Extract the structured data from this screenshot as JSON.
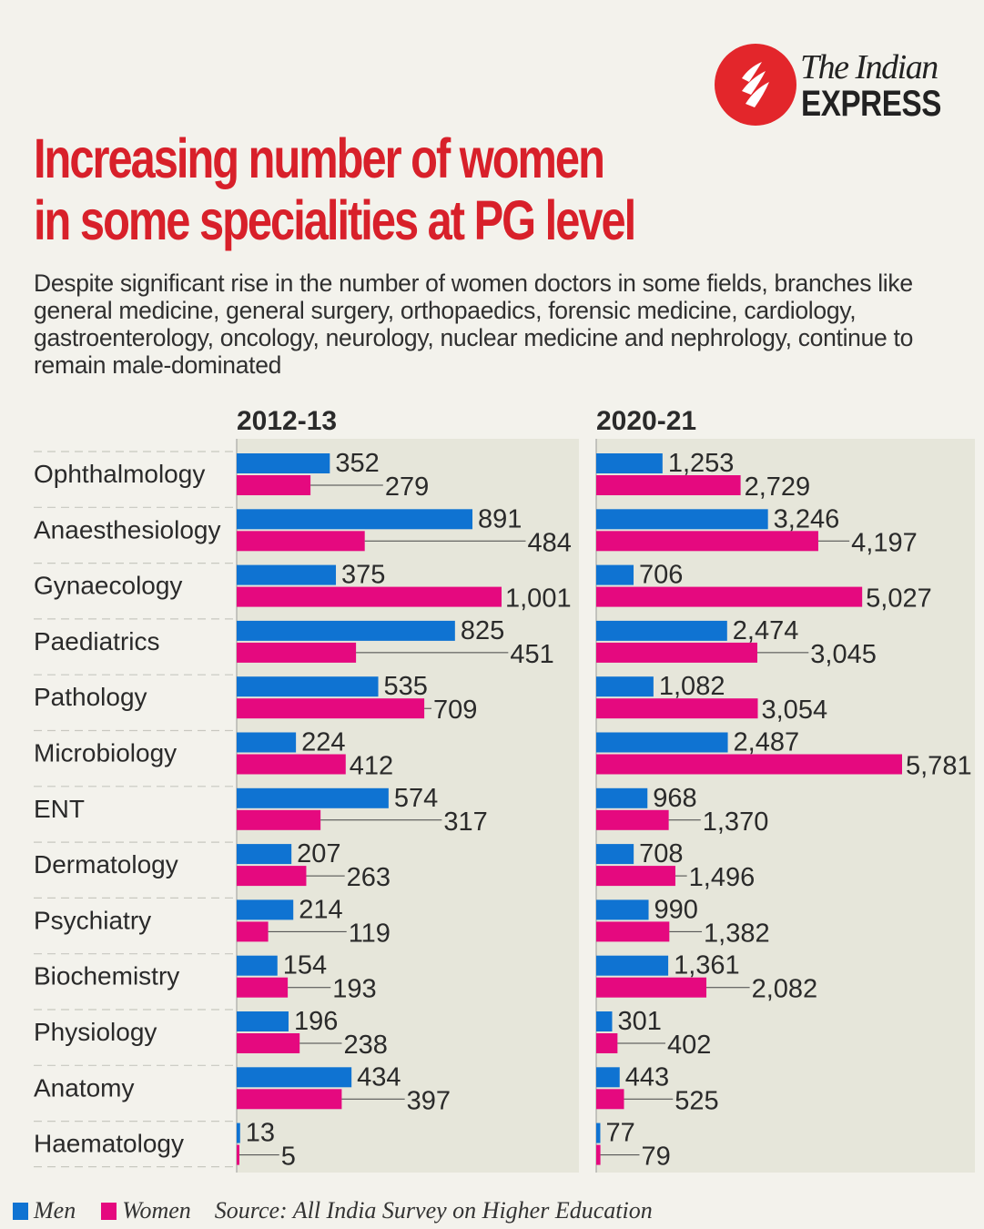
{
  "brand": {
    "line1": "The Indian",
    "line2": "EXPRESS",
    "logo_color": "#e3262b"
  },
  "title": {
    "line1": "Increasing number of women",
    "line2": "in some specialities at PG level"
  },
  "subtitle": "Despite significant rise in the number of women doctors in some fields, branches like general medicine, general surgery, orthopaedics, forensic medicine, cardiology, gastroenterology, oncology, neurology, nuclear medicine and nephrology, continue to remain male-dominated",
  "legend": {
    "men": "Men",
    "women": "Women",
    "source": "Source: All India Survey on Higher Education"
  },
  "colors": {
    "men": "#0f73d2",
    "women": "#e5097f",
    "panel": "#e6e6da",
    "title": "#d8202a"
  },
  "chart_data": {
    "type": "bar",
    "orientation": "horizontal",
    "categories": [
      "Ophthalmology",
      "Anaesthesiology",
      "Gynaecology",
      "Paediatrics",
      "Pathology",
      "Microbiology",
      "ENT",
      "Dermatology",
      "Psychiatry",
      "Biochemistry",
      "Physiology",
      "Anatomy",
      "Haematology"
    ],
    "panels": [
      {
        "title": "2012-13",
        "series": [
          {
            "name": "Men",
            "values": [
              352,
              891,
              375,
              825,
              535,
              224,
              574,
              207,
              214,
              154,
              196,
              434,
              13
            ]
          },
          {
            "name": "Women",
            "values": [
              279,
              484,
              1001,
              451,
              709,
              412,
              317,
              263,
              119,
              193,
              238,
              397,
              5
            ]
          }
        ]
      },
      {
        "title": "2020-21",
        "series": [
          {
            "name": "Men",
            "values": [
              1253,
              3246,
              706,
              2474,
              1082,
              2487,
              968,
              708,
              990,
              1361,
              301,
              443,
              77
            ]
          },
          {
            "name": "Women",
            "values": [
              2729,
              4197,
              5027,
              3045,
              3054,
              5781,
              1370,
              1496,
              1382,
              2082,
              402,
              525,
              79
            ]
          }
        ]
      }
    ],
    "legend_placement": "bottom-left",
    "grid": false
  }
}
